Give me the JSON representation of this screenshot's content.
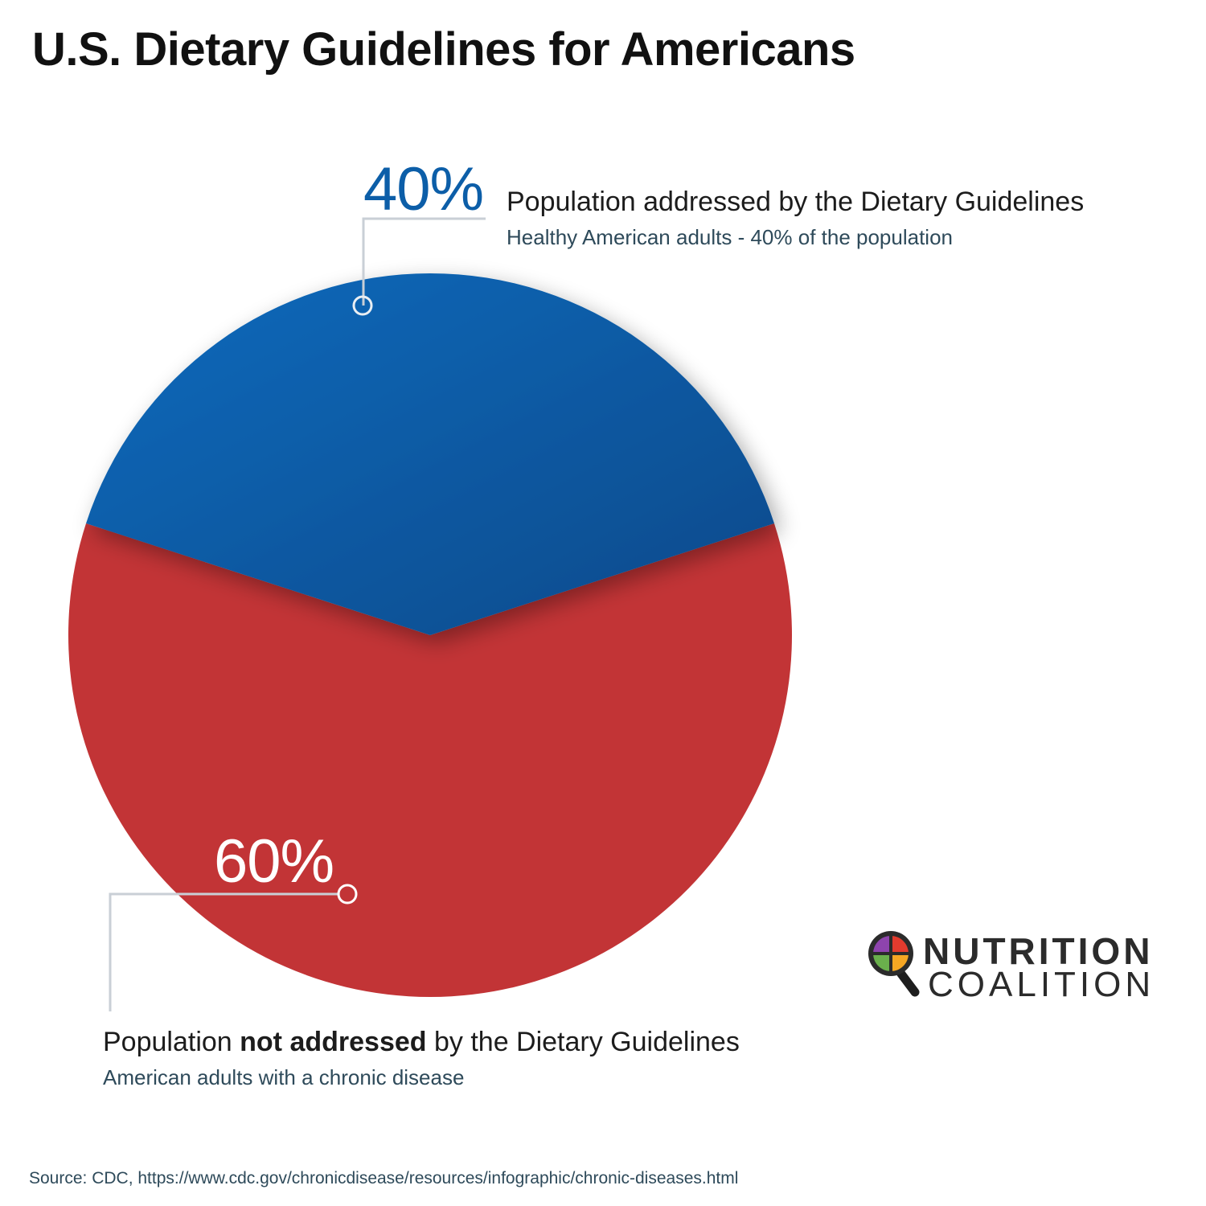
{
  "title": "U.S. Dietary Guidelines for Americans",
  "chart_data": {
    "type": "pie",
    "title": "U.S. Dietary Guidelines for Americans",
    "slices": [
      {
        "value": 40,
        "value_label": "40%",
        "label": "Population addressed by the Dietary Guidelines",
        "sublabel": "Healthy American adults - 40% of  the population",
        "color": "#0b5fa7"
      },
      {
        "value": 60,
        "value_label": "60%",
        "label_pre": "Population ",
        "label_bold": "not addressed",
        "label_post": " by the Dietary Guidelines",
        "sublabel": "American adults with a chronic disease",
        "color": "#c23436"
      }
    ],
    "legend": "none"
  },
  "logo": {
    "word1": "NUTRITION",
    "word2": "COALITION",
    "colors": [
      "#e23b2e",
      "#f5a623",
      "#6ab04c",
      "#8e44ad"
    ]
  },
  "source": "Source: CDC, https://www.cdc.gov/chronicdisease/resources/infographic/chronic-diseases.html"
}
